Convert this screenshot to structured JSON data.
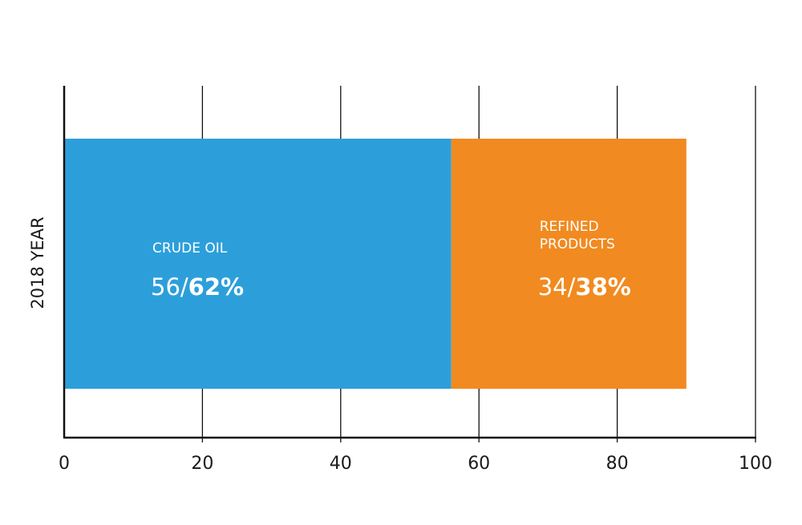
{
  "chart_data": {
    "type": "bar",
    "orientation": "horizontal",
    "stacked": true,
    "categories": [
      "2018 YEAR"
    ],
    "ylabel": "2018 YEAR",
    "xlim": [
      0,
      100
    ],
    "xticks": [
      "0",
      "20",
      "40",
      "60",
      "80",
      "100"
    ],
    "grid": true,
    "series": [
      {
        "name_lines": [
          "CRUDE OIL"
        ],
        "values": [
          56
        ],
        "value_text": "56/",
        "percent_text": "62%",
        "color": "#2C9FDA"
      },
      {
        "name_lines": [
          "REFINED",
          "PRODUCTS"
        ],
        "values": [
          34
        ],
        "value_text": "34/",
        "percent_text": "38%",
        "color": "#F18A20"
      }
    ]
  }
}
